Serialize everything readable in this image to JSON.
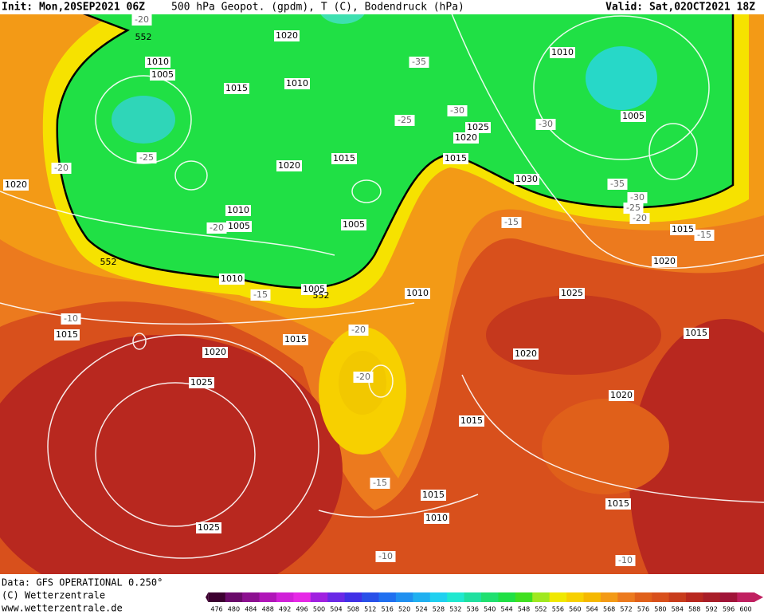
{
  "header": {
    "init": "Init: Mon,20SEP2021 06Z",
    "field": "500 hPa Geopot. (gpdm), T (C), Bodendruck (hPa)",
    "valid": "Valid: Sat,02OCT2021 18Z"
  },
  "footer": {
    "data": "Data: GFS OPERATIONAL 0.250°",
    "copyright": "(C) Wetterzentrale",
    "url": "www.wetterzentrale.de"
  },
  "colorbar": {
    "labels": [
      476,
      480,
      484,
      488,
      492,
      496,
      500,
      504,
      508,
      512,
      516,
      520,
      524,
      528,
      532,
      536,
      540,
      544,
      548,
      552,
      556,
      560,
      564,
      568,
      572,
      576,
      580,
      584,
      588,
      592,
      596,
      600
    ]
  },
  "pressure_labels": [
    1020,
    1010,
    1005,
    1015,
    1010,
    1010,
    1005,
    1025,
    1020,
    1015,
    1015,
    1020,
    1030,
    1020,
    1010,
    1005,
    1005,
    1015,
    1020,
    1010,
    1005,
    1010,
    1025,
    1015,
    1015,
    1015,
    1020,
    1020,
    1025,
    1020,
    1015,
    1015,
    1015,
    1010,
    1025
  ],
  "temperature_labels": [
    -20,
    -35,
    -30,
    -25,
    -30,
    -25,
    -20,
    -35,
    -30,
    -25,
    -20,
    -20,
    -15,
    -15,
    -15,
    -10,
    -20,
    -20,
    -15,
    -10,
    -10
  ],
  "geopotential_labels": [
    552,
    552,
    552
  ]
}
